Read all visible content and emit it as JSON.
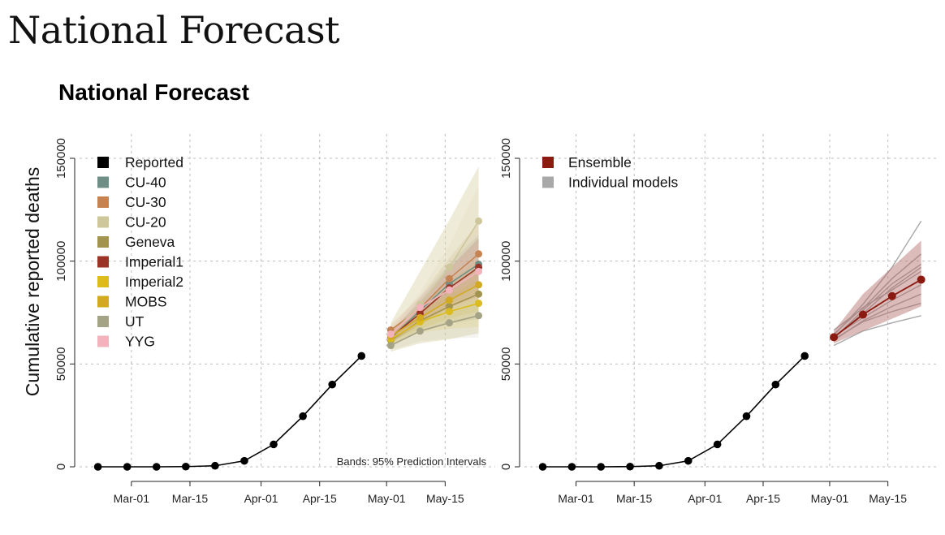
{
  "page": {
    "title": "National Forecast"
  },
  "figure": {
    "title": "National Forecast"
  },
  "chart_data": [
    {
      "type": "line",
      "ylabel": "Cumulative reported deaths",
      "xlabel": "",
      "x_ticks": [
        "Mar-01",
        "Mar-15",
        "Apr-01",
        "Apr-15",
        "May-01",
        "May-15"
      ],
      "x_tick_dates": [
        "2020-03-01",
        "2020-03-15",
        "2020-04-01",
        "2020-04-15",
        "2020-05-01",
        "2020-05-15"
      ],
      "y_ticks": [
        0,
        50000,
        100000,
        150000
      ],
      "xlim": [
        "2020-02-18",
        "2020-05-26"
      ],
      "ylim": [
        0,
        150000
      ],
      "grid": true,
      "legend_position": "top-left",
      "note": "Bands: 95% Prediction Intervals",
      "reported": {
        "name": "Reported",
        "color": "#000000",
        "dates": [
          "2020-02-22",
          "2020-02-29",
          "2020-03-07",
          "2020-03-14",
          "2020-03-21",
          "2020-03-28",
          "2020-04-04",
          "2020-04-11",
          "2020-04-18",
          "2020-04-25"
        ],
        "values": [
          0,
          0,
          0,
          100,
          500,
          2900,
          10900,
          24600,
          40000,
          53900
        ]
      },
      "forecast_dates": [
        "2020-05-02",
        "2020-05-09",
        "2020-05-16",
        "2020-05-23"
      ],
      "series": [
        {
          "name": "CU-40",
          "color": "#6f8f86",
          "values": [
            62500,
            76000,
            89000,
            98500
          ]
        },
        {
          "name": "CU-30",
          "color": "#c68352",
          "values": [
            66500,
            77000,
            91500,
            103500
          ]
        },
        {
          "name": "CU-20",
          "color": "#cdc79b",
          "values": [
            64000,
            79000,
            97000,
            119500
          ]
        },
        {
          "name": "Geneva",
          "color": "#a2944f",
          "values": [
            61500,
            71000,
            78000,
            84000
          ]
        },
        {
          "name": "Imperial1",
          "color": "#9a3426",
          "values": [
            63000,
            74500,
            87000,
            97000
          ]
        },
        {
          "name": "Imperial2",
          "color": "#dcbb1c",
          "values": [
            62000,
            70500,
            75500,
            79500
          ]
        },
        {
          "name": "MOBS",
          "color": "#d1aa22",
          "values": [
            63500,
            72500,
            81000,
            88500
          ]
        },
        {
          "name": "UT",
          "color": "#a4a386",
          "values": [
            59000,
            66000,
            70000,
            73500
          ]
        },
        {
          "name": "YYG",
          "color": "#f2b3bd",
          "values": [
            64500,
            77500,
            86000,
            95000
          ]
        }
      ],
      "band": {
        "lower": [
          56000,
          60000,
          62000,
          65000
        ],
        "upper": [
          70000,
          95000,
          120000,
          146000
        ]
      }
    },
    {
      "type": "line",
      "ylabel": "",
      "xlabel": "",
      "x_ticks": [
        "Mar-01",
        "Mar-15",
        "Apr-01",
        "Apr-15",
        "May-01",
        "May-15"
      ],
      "x_tick_dates": [
        "2020-03-01",
        "2020-03-15",
        "2020-04-01",
        "2020-04-15",
        "2020-05-01",
        "2020-05-15"
      ],
      "y_ticks": [
        0,
        50000,
        100000,
        150000
      ],
      "xlim": [
        "2020-02-18",
        "2020-05-26"
      ],
      "ylim": [
        0,
        150000
      ],
      "grid": true,
      "legend_position": "top-left",
      "legend": [
        {
          "name": "Ensemble",
          "color": "#8b1a10"
        },
        {
          "name": "Individual models",
          "color": "#a8a8a8"
        }
      ],
      "reported": {
        "dates": [
          "2020-02-22",
          "2020-02-29",
          "2020-03-07",
          "2020-03-14",
          "2020-03-21",
          "2020-03-28",
          "2020-04-04",
          "2020-04-11",
          "2020-04-18",
          "2020-04-25"
        ],
        "values": [
          0,
          0,
          0,
          100,
          500,
          2900,
          10900,
          24600,
          40000,
          53900
        ]
      },
      "forecast_dates": [
        "2020-05-02",
        "2020-05-09",
        "2020-05-16",
        "2020-05-23"
      ],
      "ensemble": {
        "name": "Ensemble",
        "color": "#8b1a10",
        "values": [
          63000,
          74000,
          83000,
          91000
        ]
      },
      "ensemble_band": {
        "lower": [
          60000,
          66000,
          72000,
          78000
        ],
        "upper": [
          66000,
          84000,
          97000,
          110000
        ]
      },
      "individual_models": {
        "color": "#a8a8a8",
        "series": [
          [
            62500,
            76000,
            89000,
            98500
          ],
          [
            66500,
            77000,
            91500,
            103500
          ],
          [
            64000,
            79000,
            97000,
            119500
          ],
          [
            61500,
            71000,
            78000,
            84000
          ],
          [
            63000,
            74500,
            87000,
            97000
          ],
          [
            62000,
            70500,
            75500,
            79500
          ],
          [
            63500,
            72500,
            81000,
            88500
          ],
          [
            59000,
            66000,
            70000,
            73500
          ],
          [
            64500,
            77500,
            86000,
            95000
          ]
        ]
      }
    }
  ]
}
